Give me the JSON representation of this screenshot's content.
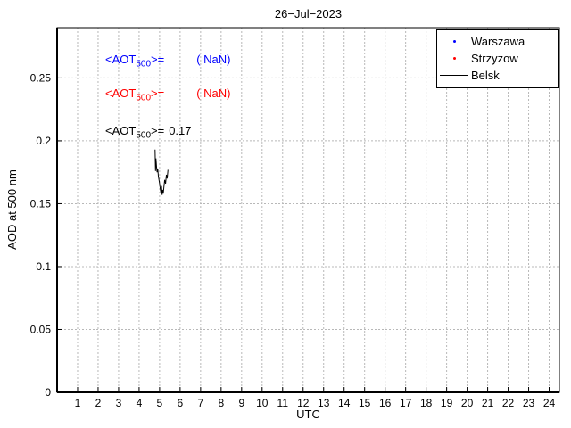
{
  "chart_data": {
    "type": "line",
    "title": "26−Jul−2023",
    "xlabel": "UTC",
    "ylabel": "AOD at 500 nm",
    "xlim": [
      0,
      24.5
    ],
    "ylim": [
      0,
      0.29
    ],
    "xticks": [
      1,
      2,
      3,
      4,
      5,
      6,
      7,
      8,
      9,
      10,
      11,
      12,
      13,
      14,
      15,
      16,
      17,
      18,
      19,
      20,
      21,
      22,
      23,
      24
    ],
    "xtick_labels": [
      "1",
      "2",
      "3",
      "4",
      "5",
      "6",
      "7",
      "8",
      "9",
      "10",
      "11",
      "12",
      "13",
      "14",
      "15",
      "16",
      "17",
      "18",
      "19",
      "20",
      "21",
      "22",
      "23",
      "24"
    ],
    "yticks": [
      0,
      0.05,
      0.1,
      0.15,
      0.2,
      0.25
    ],
    "ytick_labels": [
      "0",
      "0.05",
      "0.1",
      "0.15",
      "0.2",
      "0.25"
    ],
    "grid": true,
    "legend_position": "top-right",
    "series": [
      {
        "name": "Warszawa",
        "type": "scatter",
        "marker": "dot",
        "color": "#0000ff",
        "x": [],
        "y": []
      },
      {
        "name": "Strzyzow",
        "type": "scatter",
        "marker": "dot",
        "color": "#ff0000",
        "x": [],
        "y": []
      },
      {
        "name": "Belsk",
        "type": "line",
        "color": "#000000",
        "x": [
          4.78,
          4.8,
          4.82,
          4.85,
          4.88,
          4.91,
          4.94,
          4.97,
          5.0,
          5.03,
          5.06,
          5.09,
          5.12,
          5.15,
          5.18,
          5.21,
          5.25,
          5.29,
          5.33,
          5.37,
          5.41
        ],
        "y": [
          0.193,
          0.176,
          0.186,
          0.179,
          0.175,
          0.178,
          0.172,
          0.169,
          0.166,
          0.162,
          0.159,
          0.164,
          0.157,
          0.161,
          0.158,
          0.163,
          0.169,
          0.166,
          0.173,
          0.17,
          0.177
        ]
      }
    ],
    "annotations": [
      {
        "prefix": "<AOT",
        "sub": "500",
        "suffix": ">=",
        "value": "( NaN)",
        "color": "#0000ff"
      },
      {
        "prefix": "<AOT",
        "sub": "500",
        "suffix": ">=",
        "value": "( NaN)",
        "color": "#ff0000"
      },
      {
        "prefix": "<AOT",
        "sub": "500",
        "suffix": ">=",
        "value": "0.17",
        "color": "#000000"
      }
    ]
  }
}
